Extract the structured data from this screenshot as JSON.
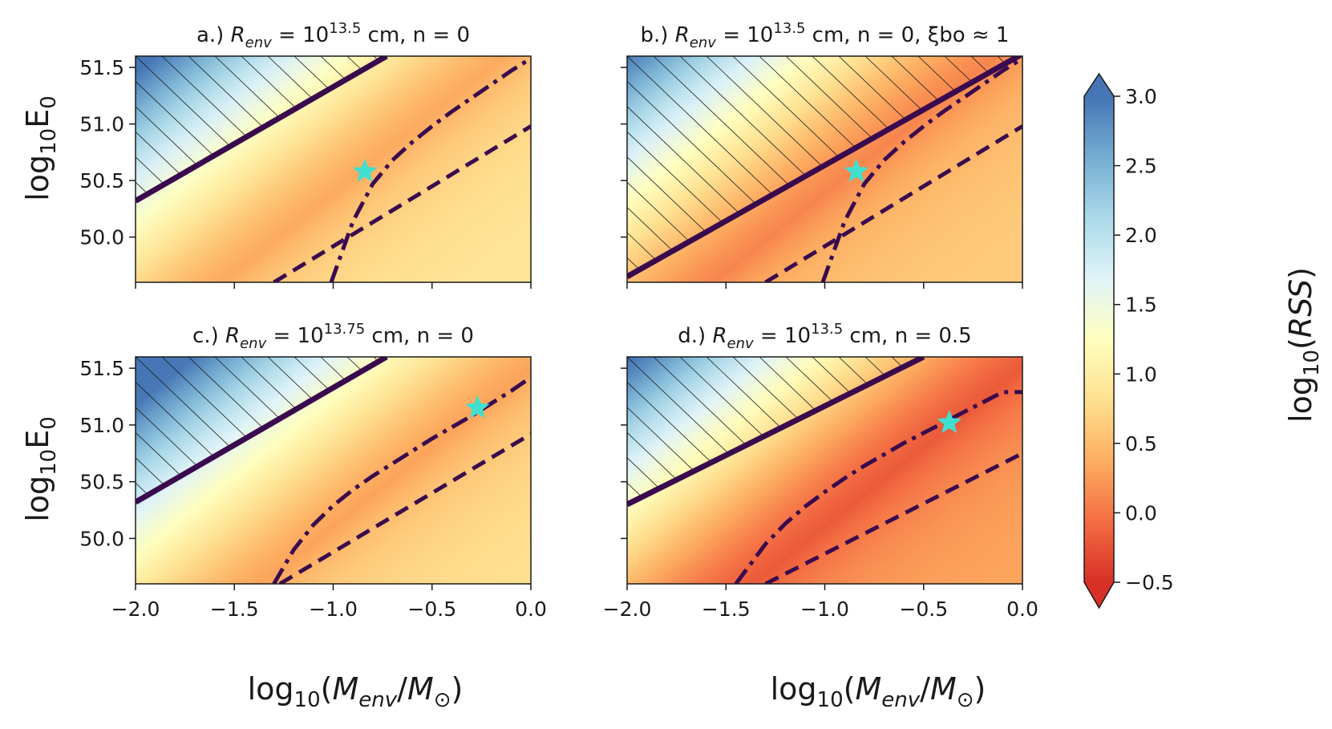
{
  "chart_data": {
    "type": "heatmap",
    "figure": "RSS maps in the log10(M_env/M_sun) vs log10(E_0) plane",
    "xlabel": "log10(Menv/M⊙)",
    "ylabel": "log10E0",
    "xlim": [
      -2.0,
      0.0
    ],
    "ylim": [
      49.6,
      51.6
    ],
    "xticks": [
      "−2.0",
      "−1.5",
      "−1.0",
      "−0.5",
      "0.0"
    ],
    "yticks": [
      "50.0",
      "50.5",
      "51.0",
      "51.5"
    ],
    "colorbar": {
      "label": "log10(RSS)",
      "cmap": "RdYlBu",
      "range": [
        -0.5,
        3.0
      ],
      "ticks": [
        "3.0",
        "2.5",
        "2.0",
        "1.5",
        "1.0",
        "0.5",
        "0.0",
        "−0.5"
      ],
      "extend": "both",
      "colors": [
        "#d73027",
        "#f46d43",
        "#fdae61",
        "#fee090",
        "#ffffbf",
        "#e0f3f8",
        "#abd9e9",
        "#74add1",
        "#4575b4"
      ]
    },
    "line_color": "#3a0a4e",
    "star_color": "#40e0d0",
    "panels": [
      {
        "id": "a",
        "title_prefix": "a.) ",
        "title_rest": " = 10",
        "title_exp": "13.5",
        "title_suffix": " cm, n = 0",
        "best_fit": [
          -0.84,
          50.58
        ],
        "valley": {
          "slope": 1.4,
          "intercept": 51.78,
          "min": 0.35
        },
        "solid_line": {
          "x": [
            -2.0,
            -0.73
          ],
          "y": [
            50.32,
            51.6
          ]
        },
        "dashdot_curve": {
          "x": [
            -1.01,
            -0.9,
            -0.8,
            -0.7,
            -0.6,
            -0.5,
            -0.4,
            -0.3,
            -0.2,
            -0.1,
            0.0
          ],
          "y": [
            49.6,
            50.14,
            50.47,
            50.68,
            50.84,
            50.98,
            51.11,
            51.23,
            51.35,
            51.47,
            51.58
          ]
        },
        "dashed_line": {
          "x": [
            -1.3,
            0.0
          ],
          "y": [
            49.6,
            50.98
          ]
        }
      },
      {
        "id": "b",
        "title_prefix": "b.) ",
        "title_rest": " = 10",
        "title_exp": "13.5",
        "title_suffix": " cm, n = 0, ξbo ≈ 1",
        "best_fit": [
          -0.84,
          50.58
        ],
        "valley": {
          "slope": 1.4,
          "intercept": 51.78,
          "min": 0.1
        },
        "solid_line": {
          "x": [
            -2.0,
            0.0
          ],
          "y": [
            49.65,
            51.62
          ]
        },
        "dashdot_curve": {
          "x": [
            -1.01,
            -0.9,
            -0.8,
            -0.7,
            -0.6,
            -0.5,
            -0.4,
            -0.3,
            -0.2,
            -0.1,
            0.0
          ],
          "y": [
            49.6,
            50.14,
            50.47,
            50.68,
            50.84,
            50.98,
            51.11,
            51.23,
            51.35,
            51.47,
            51.58
          ]
        },
        "dashed_line": {
          "x": [
            -1.3,
            0.0
          ],
          "y": [
            49.6,
            50.98
          ]
        }
      },
      {
        "id": "c",
        "title_prefix": "c.) ",
        "title_rest": " = 10",
        "title_exp": "13.75",
        "title_suffix": " cm, n = 0",
        "best_fit": [
          -0.27,
          51.15
        ],
        "valley": {
          "slope": 1.4,
          "intercept": 51.5,
          "min": 0.3
        },
        "solid_line": {
          "x": [
            -2.0,
            -0.73
          ],
          "y": [
            50.32,
            51.6
          ]
        },
        "dashdot_curve": {
          "x": [
            -1.3,
            -1.2,
            -1.1,
            -1.0,
            -0.9,
            -0.8,
            -0.7,
            -0.6,
            -0.5,
            -0.4,
            -0.3,
            -0.2,
            -0.1,
            0.0
          ],
          "y": [
            49.6,
            49.9,
            50.12,
            50.29,
            50.43,
            50.55,
            50.66,
            50.77,
            50.88,
            50.98,
            51.08,
            51.19,
            51.3,
            51.42
          ]
        },
        "dashed_line": {
          "x": [
            -1.27,
            0.0
          ],
          "y": [
            49.6,
            50.92
          ]
        }
      },
      {
        "id": "d",
        "title_prefix": "d.) ",
        "title_rest": " = 10",
        "title_exp": "13.5",
        "title_suffix": " cm, n = 0.5",
        "best_fit": [
          -0.37,
          51.02
        ],
        "valley": {
          "slope": 1.4,
          "intercept": 51.5,
          "min": -0.2
        },
        "solid_line": {
          "x": [
            -2.0,
            -0.5
          ],
          "y": [
            50.3,
            51.6
          ]
        },
        "dashdot_curve": {
          "x": [
            -1.45,
            -1.3,
            -1.2,
            -1.1,
            -1.0,
            -0.9,
            -0.8,
            -0.7,
            -0.6,
            -0.5,
            -0.4,
            -0.3,
            -0.2,
            -0.1,
            0.0
          ],
          "y": [
            49.6,
            49.95,
            50.13,
            50.28,
            50.41,
            50.53,
            50.64,
            50.74,
            50.84,
            50.93,
            51.02,
            51.11,
            51.2,
            51.29,
            51.29
          ]
        },
        "dashed_line": {
          "x": [
            -1.3,
            0.0
          ],
          "y": [
            49.6,
            50.75
          ]
        }
      }
    ]
  }
}
